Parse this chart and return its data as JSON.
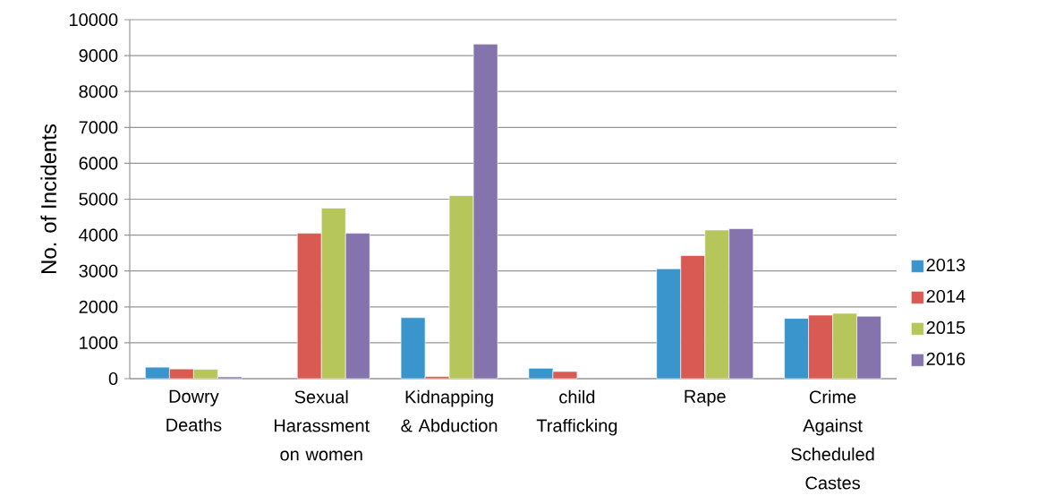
{
  "chart_data": {
    "type": "bar",
    "ylabel": "No. of Incidents",
    "categories": [
      "Dowry Deaths",
      "Sexual Harassment on women",
      "Kidnapping & Abduction",
      "child Trafficking",
      "Rape",
      "Crime Against Scheduled Castes"
    ],
    "series": [
      {
        "name": "2013",
        "color": "#3a95cc",
        "values": [
          320,
          null,
          1700,
          290,
          3060,
          1680
        ]
      },
      {
        "name": "2014",
        "color": "#d85a52",
        "values": [
          270,
          4050,
          60,
          200,
          3430,
          1770
        ]
      },
      {
        "name": "2015",
        "color": "#b6c65b",
        "values": [
          260,
          4750,
          5100,
          null,
          4140,
          1820
        ]
      },
      {
        "name": "2016",
        "color": "#8573ae",
        "values": [
          50,
          4050,
          9320,
          null,
          4180,
          1740
        ]
      }
    ],
    "ylim": [
      0,
      10000
    ],
    "yticks": [
      0,
      1000,
      2000,
      3000,
      4000,
      5000,
      6000,
      7000,
      8000,
      9000,
      10000
    ],
    "grid": "y",
    "legend": "right"
  }
}
